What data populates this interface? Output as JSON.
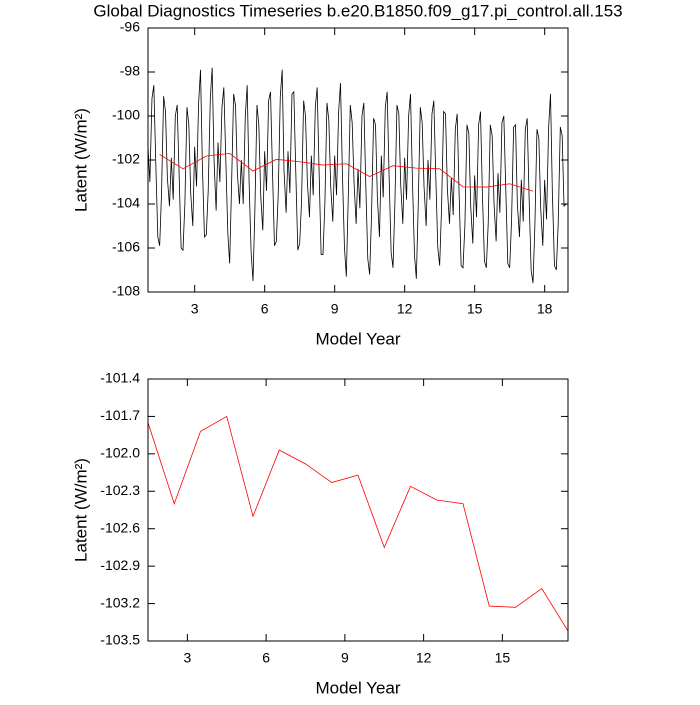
{
  "chart_data": [
    {
      "type": "line",
      "title": "Global Diagnostics Timeseries b.e20.B1850.f09_g17.pi_control.all.153",
      "xlabel": "Model Year",
      "ylabel": "Latent (W/m²)",
      "xlim": [
        1,
        19
      ],
      "xticks": [
        3,
        6,
        9,
        12,
        15,
        18
      ],
      "ylim": [
        -108,
        -96
      ],
      "yticks": [
        -108,
        -106,
        -104,
        -102,
        -100,
        -98,
        -96
      ],
      "series": [
        {
          "color": "#000000",
          "x": [
            1,
            1.08,
            1.17,
            1.25,
            1.33,
            1.42,
            1.5,
            1.58,
            1.67,
            1.75,
            1.83,
            1.92,
            2,
            2.08,
            2.17,
            2.25,
            2.33,
            2.42,
            2.5,
            2.58,
            2.67,
            2.75,
            2.83,
            2.92,
            3,
            3.08,
            3.17,
            3.25,
            3.33,
            3.42,
            3.5,
            3.58,
            3.67,
            3.75,
            3.83,
            3.92,
            4,
            4.08,
            4.17,
            4.25,
            4.33,
            4.42,
            4.5,
            4.58,
            4.67,
            4.75,
            4.83,
            4.92,
            5,
            5.08,
            5.17,
            5.25,
            5.33,
            5.42,
            5.5,
            5.58,
            5.67,
            5.75,
            5.83,
            5.92,
            6,
            6.08,
            6.17,
            6.25,
            6.33,
            6.42,
            6.5,
            6.58,
            6.67,
            6.75,
            6.83,
            6.92,
            7,
            7.08,
            7.17,
            7.25,
            7.33,
            7.42,
            7.5,
            7.58,
            7.67,
            7.75,
            7.83,
            7.92,
            8,
            8.08,
            8.17,
            8.25,
            8.33,
            8.42,
            8.5,
            8.58,
            8.67,
            8.75,
            8.83,
            8.92,
            9,
            9.08,
            9.17,
            9.25,
            9.33,
            9.42,
            9.5,
            9.58,
            9.67,
            9.75,
            9.83,
            9.92,
            10,
            10.08,
            10.17,
            10.25,
            10.33,
            10.42,
            10.5,
            10.58,
            10.67,
            10.75,
            10.83,
            10.92,
            11,
            11.08,
            11.17,
            11.25,
            11.33,
            11.42,
            11.5,
            11.58,
            11.67,
            11.75,
            11.83,
            11.92,
            12,
            12.08,
            12.17,
            12.25,
            12.33,
            12.42,
            12.5,
            12.58,
            12.67,
            12.75,
            12.83,
            12.92,
            13,
            13.08,
            13.17,
            13.25,
            13.33,
            13.42,
            13.5,
            13.58,
            13.67,
            13.75,
            13.83,
            13.92,
            14,
            14.08,
            14.17,
            14.25,
            14.33,
            14.42,
            14.5,
            14.58,
            14.67,
            14.75,
            14.83,
            14.92,
            15,
            15.08,
            15.17,
            15.25,
            15.33,
            15.42,
            15.5,
            15.58,
            15.67,
            15.75,
            15.83,
            15.92,
            16,
            16.08,
            16.17,
            16.25,
            16.33,
            16.42,
            16.5,
            16.58,
            16.67,
            16.75,
            16.83,
            16.92,
            17,
            17.08,
            17.17,
            17.25,
            17.33,
            17.42,
            17.5,
            17.58,
            17.67,
            17.75,
            17.83,
            17.92,
            18,
            18.08,
            18.17,
            18.25,
            18.33,
            18.42,
            18.5,
            18.58,
            18.67,
            18.75,
            18.83,
            18.92
          ],
          "values": [
            -101.4,
            -103.0,
            -99.2,
            -98.6,
            -102.0,
            -105.5,
            -105.9,
            -103.5,
            -99.1,
            -99.8,
            -102.8,
            -104.1,
            -101.9,
            -103.8,
            -100.0,
            -99.5,
            -102.5,
            -106.0,
            -106.1,
            -104.0,
            -99.6,
            -100.4,
            -103.5,
            -105.0,
            -101.4,
            -103.2,
            -99.4,
            -97.9,
            -102.2,
            -105.5,
            -105.4,
            -103.4,
            -99.2,
            -97.8,
            -102.0,
            -104.3,
            -101.2,
            -103.0,
            -99.6,
            -98.7,
            -101.8,
            -105.3,
            -106.7,
            -103.2,
            -99.0,
            -99.5,
            -102.6,
            -104.0,
            -102.0,
            -104.0,
            -100.0,
            -98.6,
            -102.9,
            -106.2,
            -107.5,
            -104.3,
            -99.5,
            -100.4,
            -103.6,
            -105.2,
            -101.6,
            -103.4,
            -99.3,
            -98.9,
            -102.3,
            -105.9,
            -105.7,
            -103.6,
            -99.1,
            -97.9,
            -102.5,
            -104.4,
            -101.6,
            -103.5,
            -99.0,
            -98.9,
            -102.4,
            -106.1,
            -105.8,
            -103.9,
            -99.3,
            -100.0,
            -103.0,
            -104.6,
            -101.8,
            -103.6,
            -99.6,
            -98.7,
            -102.4,
            -106.3,
            -106.3,
            -104.0,
            -99.4,
            -100.2,
            -103.2,
            -104.8,
            -101.8,
            -103.6,
            -99.8,
            -98.5,
            -102.5,
            -106.0,
            -107.3,
            -103.8,
            -99.5,
            -100.3,
            -103.0,
            -104.9,
            -102.4,
            -104.2,
            -100.0,
            -99.4,
            -103.0,
            -106.5,
            -107.2,
            -104.5,
            -100.1,
            -100.4,
            -103.7,
            -105.5,
            -101.8,
            -103.7,
            -99.6,
            -98.9,
            -102.6,
            -106.2,
            -106.9,
            -104.0,
            -99.5,
            -99.9,
            -103.1,
            -104.9,
            -101.9,
            -103.8,
            -100.0,
            -99.0,
            -102.8,
            -106.3,
            -107.4,
            -104.1,
            -99.6,
            -100.3,
            -103.2,
            -105.0,
            -102.0,
            -103.8,
            -99.9,
            -99.3,
            -102.6,
            -106.0,
            -106.8,
            -104.2,
            -99.8,
            -99.9,
            -103.3,
            -104.9,
            -102.8,
            -104.5,
            -100.6,
            -99.9,
            -103.4,
            -106.8,
            -106.9,
            -105.0,
            -100.4,
            -100.8,
            -104.1,
            -105.8,
            -102.7,
            -104.6,
            -100.4,
            -99.8,
            -103.5,
            -106.6,
            -106.9,
            -104.9,
            -100.4,
            -100.9,
            -104.0,
            -105.7,
            -102.6,
            -104.4,
            -100.3,
            -100.0,
            -103.2,
            -106.7,
            -106.9,
            -104.8,
            -100.5,
            -100.4,
            -104.0,
            -105.5,
            -102.9,
            -104.8,
            -100.6,
            -100.1,
            -103.6,
            -107.0,
            -107.6,
            -105.0,
            -100.6,
            -101.0,
            -104.2,
            -105.9,
            -102.9,
            -104.7,
            -100.5,
            -99.0,
            -103.5,
            -106.8,
            -107.0,
            -104.9,
            -100.5,
            -100.9,
            -104.1,
            -104.0
          ]
        },
        {
          "color": "#ff0000",
          "x": [
            1.5,
            2.5,
            3.5,
            4.5,
            5.5,
            6.5,
            7.5,
            8.5,
            9.5,
            10.5,
            11.5,
            12.5,
            13.5,
            14.5,
            15.5,
            16.5,
            17.5
          ],
          "values": [
            -101.75,
            -102.4,
            -101.82,
            -101.7,
            -102.5,
            -101.97,
            -102.08,
            -102.23,
            -102.17,
            -102.75,
            -102.26,
            -102.37,
            -102.4,
            -103.22,
            -103.23,
            -103.08,
            -103.42
          ]
        }
      ]
    },
    {
      "type": "line",
      "xlabel": "Model Year",
      "ylabel": "Latent (W/m²)",
      "xlim": [
        1.5,
        17.5
      ],
      "xticks": [
        3,
        6,
        9,
        12,
        15
      ],
      "ylim": [
        -103.5,
        -101.4
      ],
      "yticks": [
        -103.5,
        -103.2,
        -102.9,
        -102.6,
        -102.3,
        {
          "value": -102,
          "label": "-102.0"
        },
        -101.7,
        -101.4
      ],
      "series": [
        {
          "color": "#ff0000",
          "x": [
            1.5,
            2.5,
            3.5,
            4.5,
            5.5,
            6.5,
            7.5,
            8.5,
            9.5,
            10.5,
            11.5,
            12.5,
            13.5,
            14.5,
            15.5,
            16.5,
            17.5
          ],
          "values": [
            -101.75,
            -102.4,
            -101.82,
            -101.7,
            -102.5,
            -101.97,
            -102.08,
            -102.23,
            -102.17,
            -102.75,
            -102.26,
            -102.37,
            -102.4,
            -103.22,
            -103.23,
            -103.08,
            -103.42
          ]
        }
      ]
    }
  ]
}
